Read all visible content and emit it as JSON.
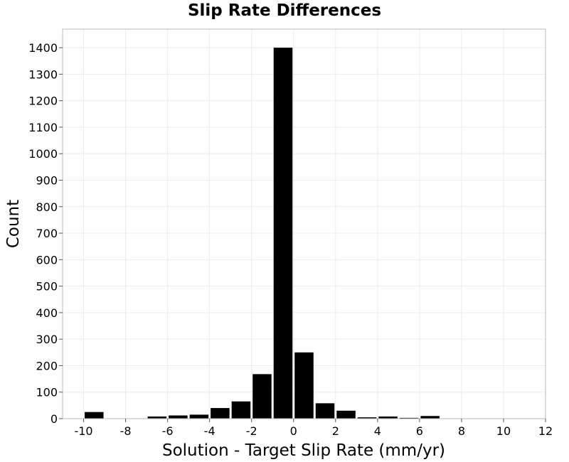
{
  "chart_data": {
    "type": "bar",
    "title": "Slip Rate Differences",
    "xlabel": "Solution - Target Slip Rate (mm/yr)",
    "ylabel": "Count",
    "xlim": [
      -11,
      12
    ],
    "ylim": [
      0,
      1470
    ],
    "bin_width": 1,
    "grid": true,
    "bar_color": "#000000",
    "bins": [
      {
        "x": -9.5,
        "value": 25
      },
      {
        "x": -6.5,
        "value": 8
      },
      {
        "x": -5.5,
        "value": 12
      },
      {
        "x": -4.5,
        "value": 15
      },
      {
        "x": -3.5,
        "value": 40
      },
      {
        "x": -2.5,
        "value": 65
      },
      {
        "x": -1.5,
        "value": 168
      },
      {
        "x": -0.5,
        "value": 1400
      },
      {
        "x": 0.5,
        "value": 250
      },
      {
        "x": 1.5,
        "value": 58
      },
      {
        "x": 2.5,
        "value": 30
      },
      {
        "x": 3.5,
        "value": 5
      },
      {
        "x": 4.5,
        "value": 8
      },
      {
        "x": 5.5,
        "value": 3
      },
      {
        "x": 6.5,
        "value": 10
      }
    ],
    "x_ticks": [
      -10,
      -8,
      -6,
      -4,
      -2,
      0,
      2,
      4,
      6,
      8,
      10,
      12
    ],
    "x_tick_labels": [
      "-10",
      "-8",
      "-6",
      "-4",
      "-2",
      "0",
      "2",
      "4",
      "6",
      "8",
      "10",
      "12"
    ],
    "y_ticks": [
      0,
      100,
      200,
      300,
      400,
      500,
      600,
      700,
      800,
      900,
      1000,
      1100,
      1200,
      1300,
      1400
    ],
    "y_tick_labels": [
      "0",
      "100",
      "200",
      "300",
      "400",
      "500",
      "600",
      "700",
      "800",
      "900",
      "1000",
      "1100",
      "1200",
      "1300",
      "1400"
    ]
  }
}
